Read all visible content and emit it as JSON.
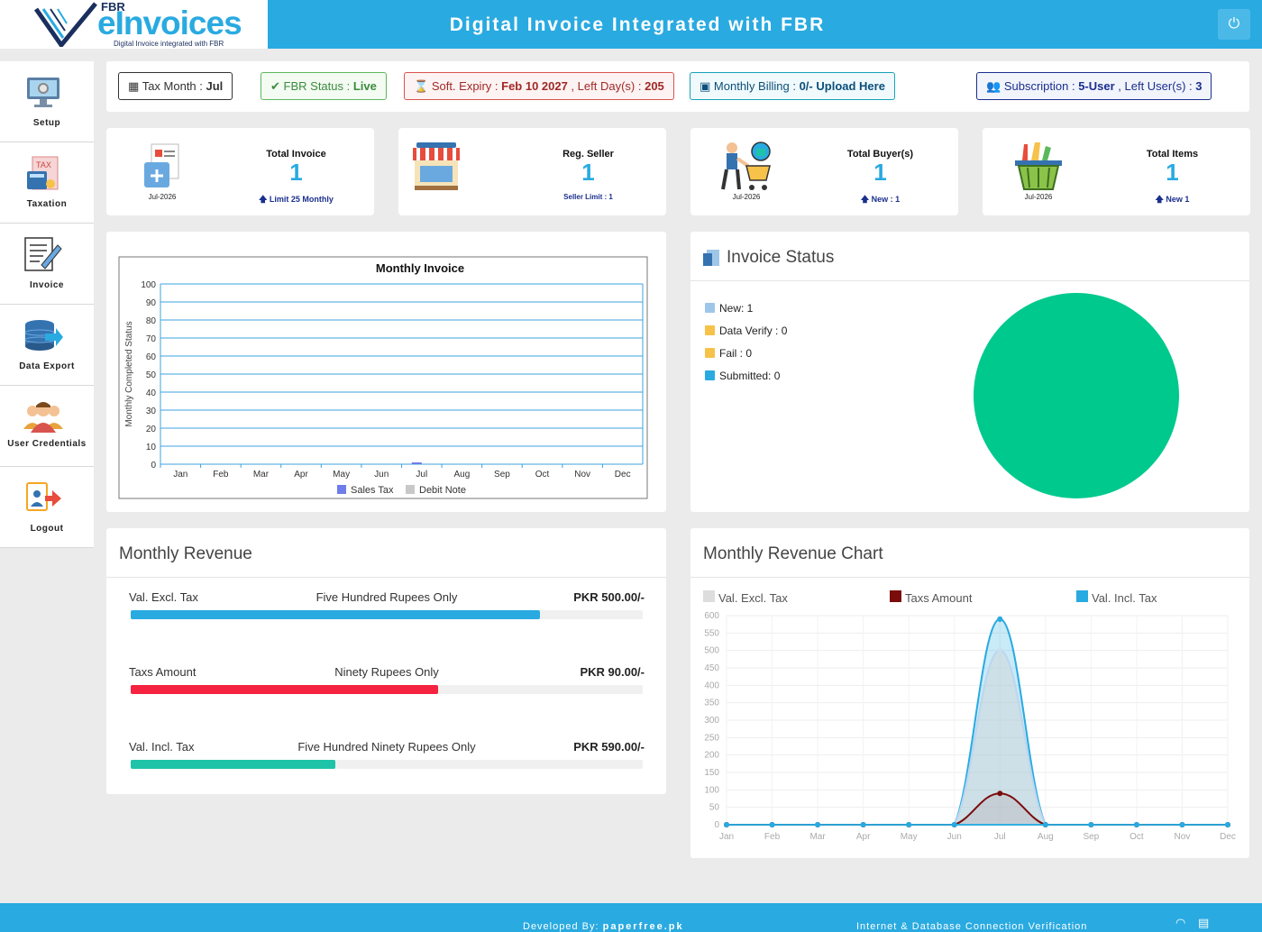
{
  "header": {
    "logo_top": "FBR",
    "logo_main": "eInvoices",
    "logo_sub": "Digital Invoice integrated with FBR",
    "title": "Digital Invoice Integrated with FBR",
    "power_icon": "power-icon"
  },
  "sidebar": {
    "items": [
      {
        "label": "Setup",
        "icon": "setup-monitor-icon"
      },
      {
        "label": "Taxation",
        "icon": "tax-calculator-icon"
      },
      {
        "label": "Invoice",
        "icon": "invoice-edit-icon"
      },
      {
        "label": "Data Export",
        "icon": "database-export-icon"
      },
      {
        "label": "User Credentials",
        "icon": "users-icon"
      },
      {
        "label": "Logout",
        "icon": "logout-icon"
      }
    ]
  },
  "infobar": {
    "tax_month": {
      "label": "Tax Month : ",
      "value": "Jul"
    },
    "fbr_status": {
      "label": "FBR Status : ",
      "value": "Live"
    },
    "soft_expiry": {
      "label": "Soft. Expiry : ",
      "date": "Feb 10 2027",
      "mid": " , Left Day(s) : ",
      "days": "205"
    },
    "monthly_billing": {
      "label": "Monthly Billing : ",
      "value": "0/-",
      "link": "Upload Here"
    },
    "subscription": {
      "label": "Subscription : ",
      "value": "5-User",
      "mid": " , Left User(s) : ",
      "users": "3"
    },
    "colors": {
      "green": "#5cb85c",
      "red": "#d9534f",
      "teal": "#17a2b8",
      "navy": "#1a2f8e"
    }
  },
  "cards": [
    {
      "title": "Total Invoice",
      "value": "1",
      "sub": "Limit 25 Monthly",
      "date": "Jul-2026",
      "icon": "invoice-document-icon"
    },
    {
      "title": "Reg. Seller",
      "value": "1",
      "sub": "Seller Limit : 1",
      "date": "",
      "icon": "shop-icon"
    },
    {
      "title": "Total Buyer(s)",
      "value": "1",
      "sub": "New : 1",
      "date": "Jul-2026",
      "icon": "buyer-cart-icon"
    },
    {
      "title": "Total Items",
      "value": "1",
      "sub": "New 1",
      "date": "Jul-2026",
      "icon": "basket-icon"
    }
  ],
  "monthly_invoice": {
    "chart_data": {
      "type": "bar",
      "title": "Monthly Invoice",
      "ylabel": "Monthly Completed Status",
      "xlabel": "",
      "categories": [
        "Jan",
        "Feb",
        "Mar",
        "Apr",
        "May",
        "Jun",
        "Jul",
        "Aug",
        "Sep",
        "Oct",
        "Nov",
        "Dec"
      ],
      "series": [
        {
          "name": "Sales Tax",
          "color": "#6f7de8",
          "values": [
            0,
            0,
            0,
            0,
            0,
            0,
            1,
            0,
            0,
            0,
            0,
            0
          ]
        },
        {
          "name": "Debit Note",
          "color": "#c8c8c8",
          "values": [
            0,
            0,
            0,
            0,
            0,
            0,
            0,
            0,
            0,
            0,
            0,
            0
          ]
        }
      ],
      "ylim": [
        0,
        100
      ],
      "yticks": [
        0,
        10,
        20,
        30,
        40,
        50,
        60,
        70,
        80,
        90,
        100
      ],
      "grid": true,
      "legend": "bottom"
    }
  },
  "invoice_status": {
    "title": "Invoice Status",
    "items": [
      {
        "label": "New: 1",
        "color": "#9ec6e8"
      },
      {
        "label": "Data Verify : 0",
        "color": "#f6c24a"
      },
      {
        "label": "Fail : 0",
        "color": "#f6c24a"
      },
      {
        "label": "Submitted: 0",
        "color": "#29aae1"
      }
    ],
    "chart_data": {
      "type": "pie",
      "slices": [
        {
          "name": "New",
          "value": 1,
          "color": "#00c98d"
        },
        {
          "name": "Data Verify",
          "value": 0,
          "color": "#f6c24a"
        },
        {
          "name": "Fail",
          "value": 0,
          "color": "#e74c3c"
        },
        {
          "name": "Submitted",
          "value": 0,
          "color": "#29aae1"
        }
      ]
    }
  },
  "monthly_revenue": {
    "title": "Monthly Revenue",
    "rows": [
      {
        "label": "Val. Excl. Tax",
        "words": "Five Hundred Rupees Only",
        "amount": "PKR 500.00/-",
        "progress": 0.8,
        "color": "#29aae1"
      },
      {
        "label": "Taxs Amount",
        "words": "Ninety Rupees Only",
        "amount": "PKR 90.00/-",
        "progress": 0.6,
        "color": "#f5233f"
      },
      {
        "label": "Val. Incl. Tax",
        "words": "Five Hundred Ninety Rupees Only",
        "amount": "PKR 590.00/-",
        "progress": 0.4,
        "color": "#1fc3a8"
      }
    ]
  },
  "revenue_chart": {
    "title": "Monthly Revenue Chart",
    "chart_data": {
      "type": "area",
      "categories": [
        "Jan",
        "Feb",
        "Mar",
        "Apr",
        "May",
        "Jun",
        "Jul",
        "Aug",
        "Sep",
        "Oct",
        "Nov",
        "Dec"
      ],
      "series": [
        {
          "name": "Val. Excl. Tax",
          "color": "#dddddd",
          "values": [
            0,
            0,
            0,
            0,
            0,
            0,
            500,
            0,
            0,
            0,
            0,
            0
          ]
        },
        {
          "name": "Taxs Amount",
          "color": "#7a0c0c",
          "values": [
            0,
            0,
            0,
            0,
            0,
            0,
            90,
            0,
            0,
            0,
            0,
            0
          ]
        },
        {
          "name": "Val. Incl. Tax",
          "color": "#29aae1",
          "values": [
            0,
            0,
            0,
            0,
            0,
            0,
            590,
            0,
            0,
            0,
            0,
            0
          ]
        }
      ],
      "ylim": [
        0,
        600
      ],
      "yticks": [
        0,
        50,
        100,
        150,
        200,
        250,
        300,
        350,
        400,
        450,
        500,
        550,
        600
      ],
      "grid": true,
      "legend": "top"
    }
  },
  "footer": {
    "developed_by": "Developed By: ",
    "site": "paperfree.pk",
    "verification": "Internet & Database Connection Verification",
    "icons": [
      "wifi-icon",
      "database-icon"
    ]
  }
}
